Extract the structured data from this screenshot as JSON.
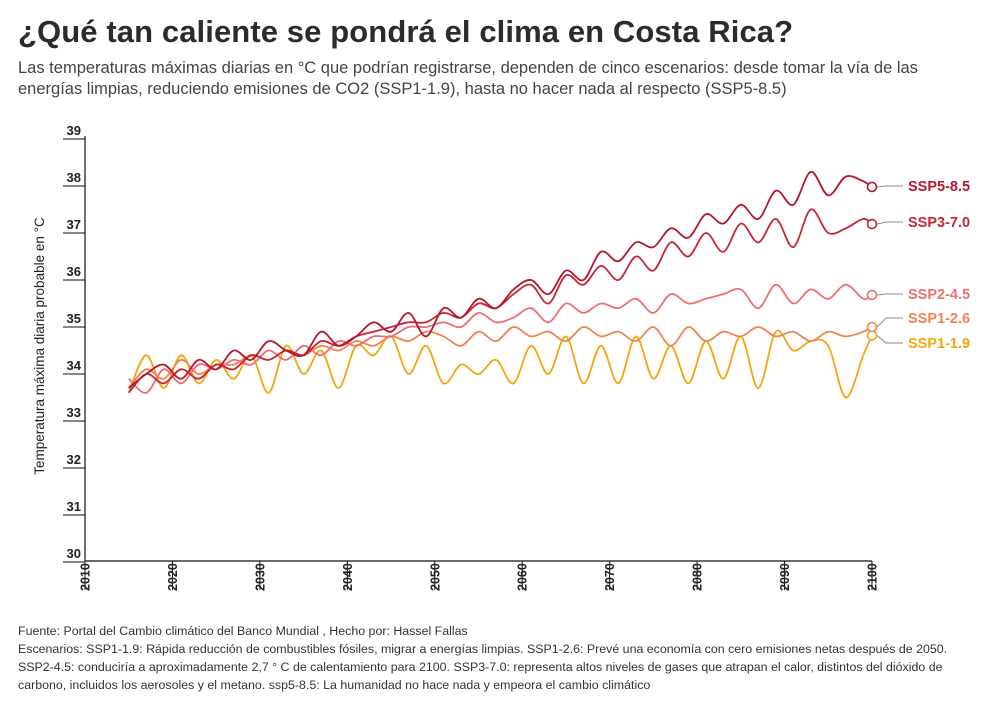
{
  "header": {
    "title": "¿Qué tan caliente se pondrá el clima en Costa Rica?",
    "subtitle": "Las temperaturas máximas diarias en °C que podrían registrarse, dependen de cinco escenarios: desde tomar la vía de las energías limpias, reduciendo emisiones de CO2 (SSP1-1.9), hasta no hacer nada al respecto (SSP5-8.5)"
  },
  "footer": {
    "source": "Fuente: Portal del Cambio climático del Banco Mundial , Hecho por: Hassel Fallas",
    "notes": "Escenarios: SSP1-1.9: Rápida reducción de combustibles fósiles, migrar a energías limpias. SSP1-2.6: Prevé una economía con cero emisiones netas después de 2050. SSP2-4.5: conduciría a aproximadamente 2,7 ° C de calentamiento para 2100. SSP3-7.0: representa altos niveles de gases que atrapan el calor, distintos del dióxido de carbono, incluidos los aerosoles y el metano. ssp5-8.5: La humanidad no hace nada y empeora el cambio climático"
  },
  "chart_data": {
    "type": "line",
    "ylabel": "Temperatura máxima diaria probable en °C",
    "xlabel": "",
    "xlim": [
      2010,
      2100
    ],
    "ylim": [
      30,
      39
    ],
    "x_ticks": [
      "2010",
      "2020",
      "2030",
      "2040",
      "2050",
      "2060",
      "2070",
      "2080",
      "2090",
      "2100"
    ],
    "y_ticks": [
      "30",
      "31",
      "32",
      "33",
      "34",
      "35",
      "36",
      "37",
      "38",
      "39"
    ],
    "grid": false,
    "legend": "direct labels at right end of lines",
    "colors": {
      "SSP5-8.5": "#b5172e",
      "SSP3-7.0": "#c72639",
      "SSP2-4.5": "#ee6f73",
      "SSP1-2.6": "#f2844f",
      "SSP1-1.9": "#f5a50d"
    },
    "x": [
      2015,
      2017,
      2019,
      2021,
      2023,
      2025,
      2027,
      2029,
      2031,
      2033,
      2035,
      2037,
      2039,
      2041,
      2043,
      2045,
      2047,
      2049,
      2051,
      2053,
      2055,
      2057,
      2059,
      2061,
      2063,
      2065,
      2067,
      2069,
      2071,
      2073,
      2075,
      2077,
      2079,
      2081,
      2083,
      2085,
      2087,
      2089,
      2091,
      2093,
      2095,
      2097,
      2099,
      2100
    ],
    "series": [
      {
        "name": "SSP5-8.5",
        "values": [
          33.7,
          34.0,
          34.2,
          33.9,
          34.3,
          34.1,
          34.5,
          34.3,
          34.7,
          34.5,
          34.4,
          34.9,
          34.6,
          34.8,
          35.1,
          34.9,
          35.3,
          34.8,
          35.4,
          35.2,
          35.6,
          35.4,
          35.8,
          36.0,
          35.7,
          36.2,
          36.0,
          36.6,
          36.4,
          36.8,
          36.7,
          37.1,
          36.9,
          37.4,
          37.2,
          37.6,
          37.3,
          37.9,
          37.6,
          38.3,
          37.8,
          38.2,
          38.1,
          37.98
        ]
      },
      {
        "name": "SSP3-7.0",
        "values": [
          33.6,
          34.0,
          33.8,
          34.1,
          33.9,
          34.2,
          34.1,
          34.4,
          34.3,
          34.5,
          34.4,
          34.7,
          34.6,
          34.8,
          34.9,
          35.0,
          35.1,
          35.1,
          35.3,
          35.2,
          35.5,
          35.4,
          35.7,
          35.9,
          35.5,
          36.1,
          35.9,
          36.3,
          36.0,
          36.5,
          36.2,
          36.8,
          36.5,
          37.0,
          36.6,
          37.2,
          36.8,
          37.3,
          36.7,
          37.5,
          37.0,
          37.1,
          37.3,
          37.19
        ]
      },
      {
        "name": "SSP2-4.5",
        "values": [
          33.9,
          33.6,
          34.1,
          33.8,
          34.2,
          34.1,
          34.3,
          34.2,
          34.5,
          34.3,
          34.6,
          34.4,
          34.7,
          34.6,
          34.8,
          34.8,
          35.0,
          35.0,
          35.1,
          35.0,
          35.3,
          35.1,
          35.2,
          35.4,
          35.1,
          35.5,
          35.3,
          35.5,
          35.4,
          35.6,
          35.3,
          35.7,
          35.5,
          35.6,
          35.7,
          35.8,
          35.4,
          35.9,
          35.5,
          35.8,
          35.6,
          35.9,
          35.6,
          35.68
        ]
      },
      {
        "name": "SSP1-2.6",
        "values": [
          33.7,
          34.1,
          33.9,
          34.3,
          34.0,
          34.2,
          34.2,
          34.4,
          34.3,
          34.5,
          34.4,
          34.6,
          34.5,
          34.7,
          34.6,
          34.8,
          34.7,
          34.9,
          34.8,
          34.6,
          34.9,
          34.7,
          35.0,
          34.8,
          34.9,
          34.7,
          35.0,
          34.8,
          34.9,
          34.7,
          35.0,
          34.6,
          35.0,
          34.7,
          34.9,
          34.8,
          35.0,
          34.8,
          34.9,
          34.7,
          34.9,
          34.8,
          34.9,
          35.0
        ]
      },
      {
        "name": "SSP1-1.9",
        "values": [
          33.6,
          34.4,
          33.7,
          34.4,
          33.8,
          34.3,
          33.9,
          34.4,
          33.6,
          34.6,
          34.0,
          34.5,
          33.7,
          34.6,
          34.4,
          34.8,
          34.0,
          34.6,
          33.8,
          34.2,
          34.0,
          34.3,
          33.8,
          34.6,
          34.0,
          34.8,
          33.8,
          34.6,
          33.8,
          34.8,
          33.9,
          34.6,
          33.8,
          34.7,
          33.9,
          34.8,
          33.7,
          34.9,
          34.5,
          34.7,
          34.6,
          33.5,
          34.4,
          34.82
        ]
      }
    ]
  }
}
